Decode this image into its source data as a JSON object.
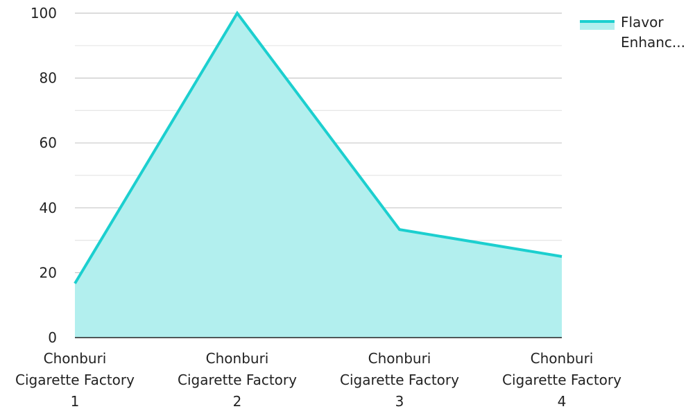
{
  "chart_data": {
    "type": "area",
    "categories": [
      [
        "Chonburi",
        "Cigarette Factory",
        "1"
      ],
      [
        "Chonburi",
        "Cigarette Factory",
        "2"
      ],
      [
        "Chonburi",
        "Cigarette Factory",
        "3"
      ],
      [
        "Chonburi",
        "Cigarette Factory",
        "4"
      ]
    ],
    "series": [
      {
        "name": "Flavor Enhanc...",
        "values": [
          16.7,
          100,
          33.3,
          25
        ]
      }
    ],
    "ylim": [
      0,
      100
    ],
    "yticks": [
      0,
      20,
      40,
      60,
      80,
      100
    ],
    "grid": true,
    "legend_position": "top-right",
    "colors": {
      "line": "#1ccfcf",
      "fill": "#b2efee",
      "grid": "#d0d0d0",
      "axis": "#222222"
    }
  },
  "legend": {
    "line1": "Flavor",
    "line2": "Enhanc..."
  }
}
